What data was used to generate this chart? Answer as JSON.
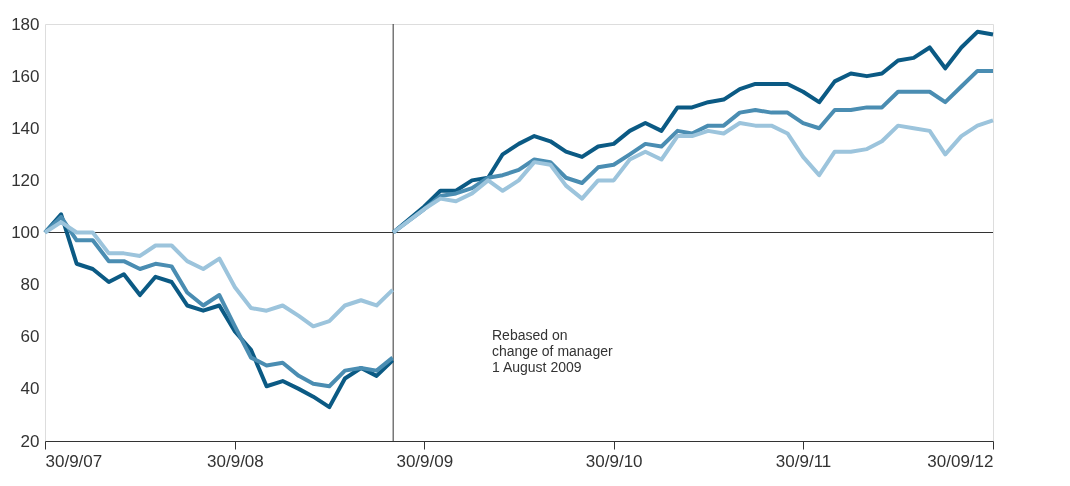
{
  "chart_data": {
    "type": "line",
    "series": [
      {
        "color": "#0b5a84",
        "x": [
          "2007-09-30",
          "2007-10-31",
          "2007-11-30",
          "2007-12-31",
          "2008-01-31",
          "2008-02-29",
          "2008-03-31",
          "2008-04-30",
          "2008-05-31",
          "2008-06-30",
          "2008-07-31",
          "2008-08-31",
          "2008-09-30",
          "2008-10-31",
          "2008-11-30",
          "2008-12-31",
          "2009-01-31",
          "2009-02-28",
          "2009-03-31",
          "2009-04-30",
          "2009-05-31",
          "2009-06-30",
          "2009-07-31"
        ],
        "values": [
          100,
          107,
          88,
          86,
          81,
          84,
          76,
          83,
          81,
          72,
          70,
          72,
          62,
          55,
          41,
          43,
          40,
          37,
          33,
          44,
          48,
          45,
          51
        ]
      },
      {
        "color": "#4a8db2",
        "x": [
          "2007-09-30",
          "2007-10-31",
          "2007-11-30",
          "2007-12-31",
          "2008-01-31",
          "2008-02-29",
          "2008-03-31",
          "2008-04-30",
          "2008-05-31",
          "2008-06-30",
          "2008-07-31",
          "2008-08-31",
          "2008-09-30",
          "2008-10-31",
          "2008-11-30",
          "2008-12-31",
          "2009-01-31",
          "2009-02-28",
          "2009-03-31",
          "2009-04-30",
          "2009-05-31",
          "2009-06-30",
          "2009-07-31"
        ],
        "values": [
          100,
          106,
          97,
          97,
          89,
          89,
          86,
          88,
          87,
          77,
          72,
          76,
          64,
          52,
          49,
          50,
          45,
          42,
          41,
          47,
          48,
          47,
          52
        ]
      },
      {
        "color": "#9cc4dc",
        "x": [
          "2007-09-30",
          "2007-10-31",
          "2007-11-30",
          "2007-12-31",
          "2008-01-31",
          "2008-02-29",
          "2008-03-31",
          "2008-04-30",
          "2008-05-31",
          "2008-06-30",
          "2008-07-31",
          "2008-08-31",
          "2008-09-30",
          "2008-10-31",
          "2008-11-30",
          "2008-12-31",
          "2009-01-31",
          "2009-02-28",
          "2009-03-31",
          "2009-04-30",
          "2009-05-31",
          "2009-06-30",
          "2009-07-31"
        ],
        "values": [
          100,
          104,
          100,
          100,
          92,
          92,
          91,
          95,
          95,
          89,
          86,
          90,
          79,
          71,
          70,
          72,
          68,
          64,
          66,
          72,
          74,
          72,
          78
        ]
      },
      {
        "color": "#0b5a84",
        "x": [
          "2009-08-01",
          "2009-09-30",
          "2009-10-31",
          "2009-11-30",
          "2009-12-31",
          "2010-01-31",
          "2010-02-28",
          "2010-03-31",
          "2010-04-30",
          "2010-05-31",
          "2010-06-30",
          "2010-07-31",
          "2010-08-31",
          "2010-09-30",
          "2010-10-31",
          "2010-11-30",
          "2010-12-31",
          "2011-01-31",
          "2011-02-28",
          "2011-03-31",
          "2011-04-30",
          "2011-05-31",
          "2011-06-30",
          "2011-07-31",
          "2011-08-31",
          "2011-09-30",
          "2011-10-31",
          "2011-11-30",
          "2011-12-31",
          "2012-01-31",
          "2012-02-29",
          "2012-03-31",
          "2012-04-30",
          "2012-05-31",
          "2012-06-30",
          "2012-07-31",
          "2012-08-31",
          "2012-09-30"
        ],
        "values": [
          100,
          110,
          116,
          116,
          120,
          121,
          130,
          134,
          137,
          135,
          131,
          129,
          133,
          134,
          139,
          142,
          139,
          148,
          148,
          150,
          151,
          155,
          157,
          157,
          157,
          154,
          150,
          158,
          161,
          160,
          161,
          166,
          167,
          171,
          163,
          171,
          177,
          176
        ]
      },
      {
        "color": "#4a8db2",
        "x": [
          "2009-08-01",
          "2009-09-30",
          "2009-10-31",
          "2009-11-30",
          "2009-12-31",
          "2010-01-31",
          "2010-02-28",
          "2010-03-31",
          "2010-04-30",
          "2010-05-31",
          "2010-06-30",
          "2010-07-31",
          "2010-08-31",
          "2010-09-30",
          "2010-10-31",
          "2010-11-30",
          "2010-12-31",
          "2011-01-31",
          "2011-02-28",
          "2011-03-31",
          "2011-04-30",
          "2011-05-31",
          "2011-06-30",
          "2011-07-31",
          "2011-08-31",
          "2011-09-30",
          "2011-10-31",
          "2011-11-30",
          "2011-12-31",
          "2012-01-31",
          "2012-02-29",
          "2012-03-31",
          "2012-04-30",
          "2012-05-31",
          "2012-06-30",
          "2012-07-31",
          "2012-08-31",
          "2012-09-30"
        ],
        "values": [
          100,
          109,
          114,
          115,
          117,
          121,
          122,
          124,
          128,
          127,
          121,
          119,
          125,
          126,
          130,
          134,
          133,
          139,
          138,
          141,
          141,
          146,
          147,
          146,
          146,
          142,
          140,
          147,
          147,
          148,
          148,
          154,
          154,
          154,
          150,
          156,
          162,
          162
        ]
      },
      {
        "color": "#9cc4dc",
        "x": [
          "2009-08-01",
          "2009-09-30",
          "2009-10-31",
          "2009-11-30",
          "2009-12-31",
          "2010-01-31",
          "2010-02-28",
          "2010-03-31",
          "2010-04-30",
          "2010-05-31",
          "2010-06-30",
          "2010-07-31",
          "2010-08-31",
          "2010-09-30",
          "2010-10-31",
          "2010-11-30",
          "2010-12-31",
          "2011-01-31",
          "2011-02-28",
          "2011-03-31",
          "2011-04-30",
          "2011-05-31",
          "2011-06-30",
          "2011-07-31",
          "2011-08-31",
          "2011-09-30",
          "2011-10-31",
          "2011-11-30",
          "2011-12-31",
          "2012-01-31",
          "2012-02-29",
          "2012-03-31",
          "2012-04-30",
          "2012-05-31",
          "2012-06-30",
          "2012-07-31",
          "2012-08-31",
          "2012-09-30"
        ],
        "values": [
          100,
          109,
          113,
          112,
          115,
          120,
          116,
          120,
          127,
          126,
          118,
          113,
          120,
          120,
          128,
          131,
          128,
          137,
          137,
          139,
          138,
          142,
          141,
          141,
          138,
          129,
          122,
          131,
          131,
          132,
          135,
          141,
          140,
          139,
          130,
          137,
          141,
          143
        ]
      }
    ],
    "xlim": [
      "2007-09-30",
      "2012-09-30"
    ],
    "xticks": [
      {
        "value": "2007-09-30",
        "label": "30/9/07"
      },
      {
        "value": "2008-09-30",
        "label": "30/9/08"
      },
      {
        "value": "2009-09-30",
        "label": "30/9/09"
      },
      {
        "value": "2010-09-30",
        "label": "30/9/10"
      },
      {
        "value": "2011-09-30",
        "label": "30/9/11"
      },
      {
        "value": "2012-09-30",
        "label": "30/09/12"
      }
    ],
    "ylim": [
      20,
      180
    ],
    "yticks": [
      20,
      40,
      60,
      80,
      100,
      120,
      140,
      160,
      180
    ],
    "ref_lines": [
      {
        "axis": "y",
        "value": 100,
        "color": "#333333"
      },
      {
        "axis": "x",
        "value": "2009-08-01",
        "color": "#333333"
      }
    ],
    "annotations": [
      "Rebased on\nchange of manager\n1 August 2009"
    ],
    "grid": false,
    "marker": "none",
    "line_style": "solid"
  }
}
